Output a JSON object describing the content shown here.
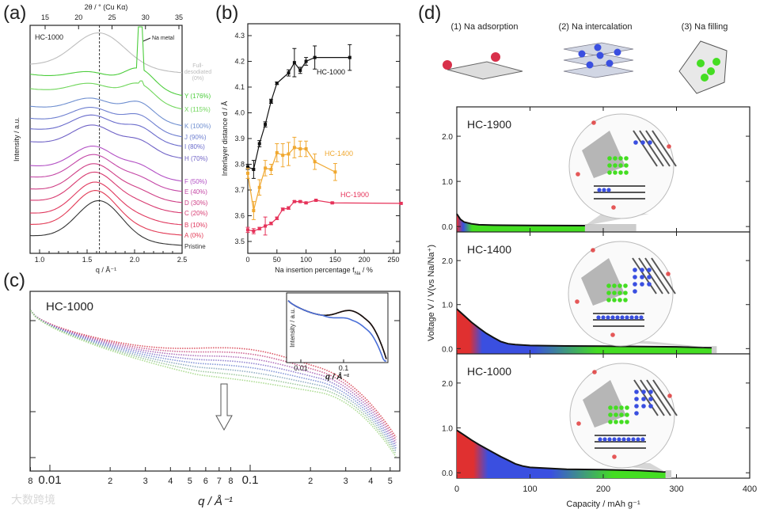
{
  "panels": {
    "a": "(a)",
    "b": "(b)",
    "c": "(c)",
    "d": "(d)"
  },
  "watermark": "大数跨境",
  "chart_data": [
    {
      "id": "a",
      "type": "line",
      "title": "HC-1000",
      "xlabel": "q / Å⁻¹",
      "xlim": [
        0.9,
        2.5
      ],
      "xticks": [
        1.0,
        1.5,
        2.0,
        2.5
      ],
      "x2label": "2θ / ° (Cu Kα)",
      "x2ticks": [
        15,
        20,
        25,
        30,
        35
      ],
      "ylabel": "Intensity / a.u.",
      "annotation": "Na metal",
      "dashed_line_q": 1.63,
      "series": [
        {
          "name": "Full-desodiated (0%)",
          "lines": [
            "Full-",
            "desodiated",
            "(0%)"
          ],
          "color": "#bdbdbd"
        },
        {
          "name": "Y (176%)",
          "color": "#4ccd3c"
        },
        {
          "name": "X (115%)",
          "color": "#6fd65a"
        },
        {
          "name": "K (100%)",
          "color": "#6f8fd0"
        },
        {
          "name": "J (90%)",
          "color": "#6e7fd0"
        },
        {
          "name": "I (80%)",
          "color": "#6a6ccc"
        },
        {
          "name": "H (70%)",
          "color": "#6f62c6"
        },
        {
          "name": "F (50%)",
          "color": "#b24fc4"
        },
        {
          "name": "E (40%)",
          "color": "#c447a6"
        },
        {
          "name": "D (30%)",
          "color": "#cf3f86"
        },
        {
          "name": "C (20%)",
          "color": "#d83a70"
        },
        {
          "name": "B (10%)",
          "color": "#e0385e"
        },
        {
          "name": "A (0%)",
          "color": "#e23a55"
        },
        {
          "name": "Pristine",
          "color": "#333333"
        }
      ]
    },
    {
      "id": "b",
      "type": "line",
      "xlabel": "Na insertion percentage f",
      "xlabel_sub": "Na",
      "xlabel_tail": " / %",
      "ylabel": "Interlayer distance d / Å",
      "xlim": [
        0,
        260
      ],
      "ylim": [
        3.5,
        4.3
      ],
      "xticks": [
        0,
        50,
        100,
        150,
        200,
        250
      ],
      "yticks": [
        3.5,
        3.6,
        3.7,
        3.8,
        3.9,
        4.0,
        4.1,
        4.2,
        4.3
      ],
      "series": [
        {
          "name": "HC-1000",
          "color": "#111111",
          "x": [
            0,
            10,
            20,
            30,
            40,
            50,
            70,
            80,
            90,
            100,
            115,
            175
          ],
          "y": [
            3.79,
            3.78,
            3.88,
            3.955,
            4.045,
            4.115,
            4.155,
            4.195,
            4.165,
            4.2,
            4.215,
            4.215
          ],
          "err": [
            0.01,
            0.035,
            0.012,
            0.01,
            0.008,
            0.005,
            0.012,
            0.055,
            0.012,
            0.015,
            0.045,
            0.05
          ]
        },
        {
          "name": "HC-1400",
          "color": "#f0a830",
          "x": [
            0,
            10,
            20,
            30,
            40,
            50,
            60,
            70,
            80,
            90,
            100,
            115,
            150
          ],
          "y": [
            3.765,
            3.62,
            3.71,
            3.785,
            3.78,
            3.845,
            3.835,
            3.84,
            3.865,
            3.86,
            3.86,
            3.81,
            3.77
          ],
          "err": [
            0.02,
            0.035,
            0.03,
            0.03,
            0.02,
            0.035,
            0.045,
            0.045,
            0.04,
            0.03,
            0.03,
            0.03,
            0.033
          ]
        },
        {
          "name": "HC-1900",
          "color": "#e6335a",
          "x": [
            0,
            10,
            20,
            30,
            40,
            50,
            60,
            70,
            80,
            90,
            100,
            117,
            145,
            263
          ],
          "y": [
            3.545,
            3.54,
            3.55,
            3.56,
            3.57,
            3.59,
            3.625,
            3.63,
            3.655,
            3.655,
            3.65,
            3.66,
            3.65,
            3.648
          ],
          "err": [
            0.01,
            0.01,
            0.005,
            0.035,
            0.005,
            0.005,
            0.005,
            0.005,
            0.003,
            0.003,
            0.003,
            0.003,
            0.003,
            0.003
          ]
        }
      ]
    },
    {
      "id": "c",
      "type": "scatter",
      "title": "HC-1000",
      "xlabel": "q / Å⁻¹",
      "xscale": "log",
      "xlim": [
        0.008,
        0.55
      ],
      "xticks": [
        {
          "v": 0.008,
          "l": "8"
        },
        {
          "v": 0.01,
          "l": "0.01"
        },
        {
          "v": 0.02,
          "l": "2"
        },
        {
          "v": 0.03,
          "l": "3"
        },
        {
          "v": 0.04,
          "l": "4"
        },
        {
          "v": 0.05,
          "l": "5"
        },
        {
          "v": 0.06,
          "l": "6"
        },
        {
          "v": 0.07,
          "l": "7"
        },
        {
          "v": 0.08,
          "l": "8"
        },
        {
          "v": 0.1,
          "l": "0.1"
        },
        {
          "v": 0.2,
          "l": "2"
        },
        {
          "v": 0.3,
          "l": "3"
        },
        {
          "v": 0.4,
          "l": "4"
        },
        {
          "v": 0.5,
          "l": "5"
        }
      ],
      "ylabel": "Intensity / a.u.",
      "yscale": "log",
      "series_colors": [
        "#d63a4a",
        "#c44a80",
        "#a35ab0",
        "#7f6ec8",
        "#6f84d0",
        "#7fa0b8",
        "#8fbf8f",
        "#9fd680"
      ],
      "inset": {
        "xlabel": "q / Å⁻¹",
        "ylabel": "Intensity / a.u.",
        "xticks": [
          {
            "v": 0.01,
            "l": "0.01"
          },
          {
            "v": 0.1,
            "l": "0.1"
          }
        ],
        "series_colors": [
          "#c0392b",
          "#111111",
          "#4a6fd8"
        ]
      }
    },
    {
      "id": "d",
      "type": "area",
      "xlabel": "Capacity / mAh g⁻¹",
      "xlim": [
        0,
        400
      ],
      "xticks": [
        0,
        100,
        200,
        300,
        400
      ],
      "ylabel": "Voltage V / V(vs Na/Na⁺)",
      "ylim": [
        -0.12,
        2.65
      ],
      "yticks": [
        "0.0",
        "1.0",
        "2.0"
      ],
      "mechanisms": [
        "(1) Na adsorption",
        "(2) Na intercalation",
        "(3) Na filling"
      ],
      "mechanism_colors": {
        "adsorption": "#e03030",
        "intercalation": "#3a4fe0",
        "filling": "#44dd22",
        "irreversible": "#cccccc"
      },
      "series": [
        {
          "name": "HC-1900",
          "capacity": [
            0,
            5,
            10,
            20,
            30,
            50,
            100,
            175
          ],
          "voltage": [
            0.28,
            0.16,
            0.1,
            0.06,
            0.04,
            0.03,
            0.025,
            0.02
          ],
          "end_capacity": 175,
          "total_capacity": 245
        },
        {
          "name": "HC-1400",
          "capacity": [
            0,
            10,
            20,
            30,
            40,
            50,
            60,
            70,
            80,
            100,
            150,
            200,
            300,
            348
          ],
          "voltage": [
            0.9,
            0.75,
            0.6,
            0.47,
            0.35,
            0.25,
            0.16,
            0.11,
            0.09,
            0.07,
            0.06,
            0.055,
            0.04,
            0.02
          ],
          "end_capacity": 348,
          "total_capacity": 355
        },
        {
          "name": "HC-1000",
          "capacity": [
            0,
            10,
            20,
            30,
            40,
            50,
            60,
            70,
            80,
            90,
            100,
            150,
            200,
            250,
            285
          ],
          "voltage": [
            0.95,
            0.84,
            0.73,
            0.63,
            0.54,
            0.45,
            0.36,
            0.28,
            0.2,
            0.15,
            0.12,
            0.08,
            0.07,
            0.05,
            0.02
          ],
          "end_capacity": 285,
          "total_capacity": 293
        }
      ]
    }
  ]
}
